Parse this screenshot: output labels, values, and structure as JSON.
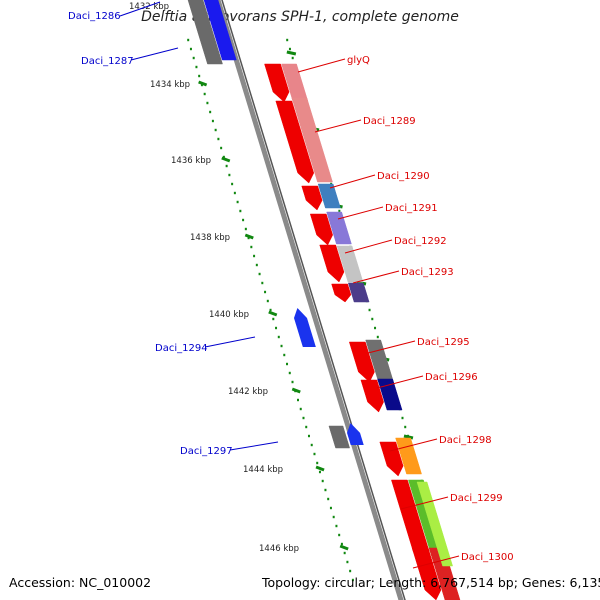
{
  "title": "Delftia acidovorans SPH-1, complete genome",
  "footer": {
    "accession": "Accession: NC_010002",
    "summary": "Topology: circular; Length: 6,767,514 bp; Genes: 6,135"
  },
  "colors": {
    "forward_label": "#dd0000",
    "reverse_label": "#0000cc",
    "backbone": "#8a8a8a",
    "tick": "#118811"
  },
  "scale": {
    "ticks": [
      "1434 kbp",
      "1436 kbp",
      "1438 kbp",
      "1440 kbp",
      "1442 kbp",
      "1444 kbp",
      "1446 kbp"
    ],
    "partial_tick": "1432 kbp"
  },
  "gene_labels": {
    "forward": [
      "glyQ",
      "Daci_1289",
      "Daci_1290",
      "Daci_1291",
      "Daci_1292",
      "Daci_1293",
      "Daci_1295",
      "Daci_1296",
      "Daci_1298",
      "Daci_1299",
      "Daci_1300"
    ],
    "reverse": [
      "Daci_1286",
      "Daci_1287",
      "Daci_1294",
      "Daci_1297"
    ]
  }
}
